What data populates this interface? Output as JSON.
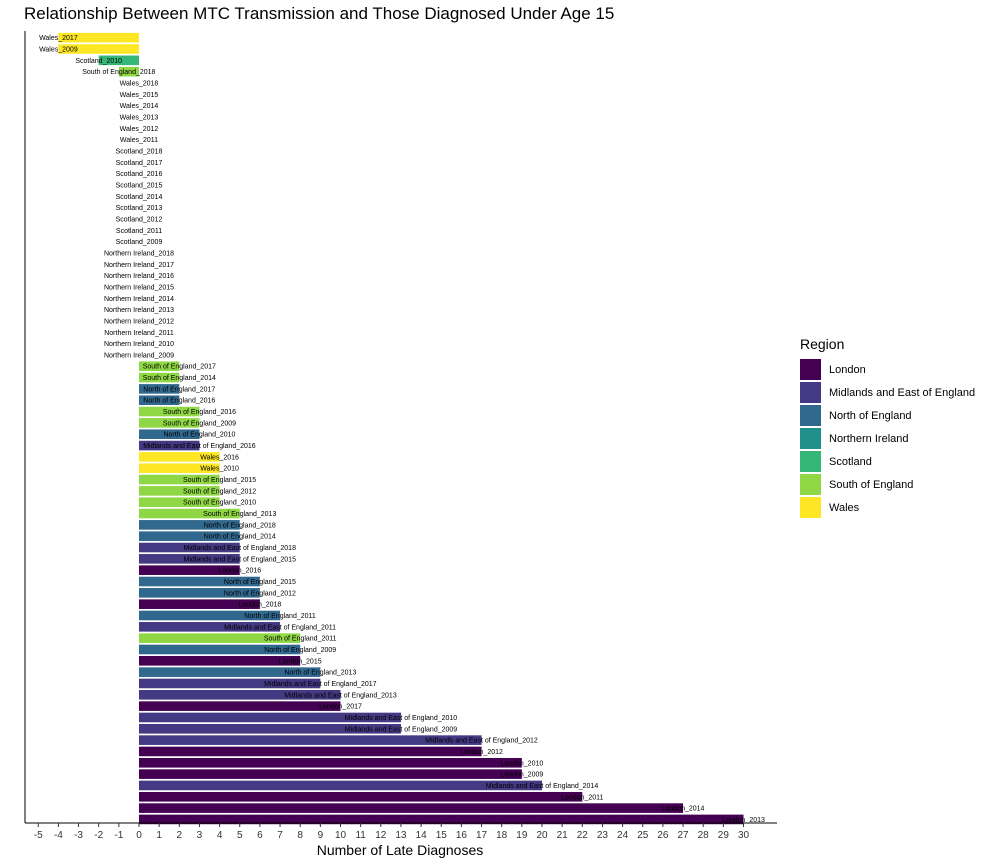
{
  "chart_data": {
    "type": "bar",
    "orientation": "horizontal",
    "title": "Relationship Between MTC Transmission and Those Diagnosed  Under Age 15",
    "xlabel": "Number of Late Diagnoses",
    "ylabel": "",
    "xlim": [
      -5.5,
      31.8
    ],
    "x_ticks": [
      "-5",
      "-4",
      "-3",
      "-2",
      "-1",
      "0",
      "1",
      "2",
      "3",
      "4",
      "5",
      "6",
      "7",
      "8",
      "9",
      "10",
      "11",
      "12",
      "13",
      "14",
      "15",
      "16",
      "17",
      "18",
      "19",
      "20",
      "21",
      "22",
      "23",
      "24",
      "25",
      "26",
      "27",
      "28",
      "29",
      "30"
    ],
    "legend_title": "Region",
    "legend_position": "right",
    "regions": [
      {
        "name": "London",
        "color": "#440154"
      },
      {
        "name": "Midlands and East of England",
        "color": "#443983"
      },
      {
        "name": "North of England",
        "color": "#31688E"
      },
      {
        "name": "Northern Ireland",
        "color": "#21908C"
      },
      {
        "name": "Scotland",
        "color": "#35B779"
      },
      {
        "name": "South of England",
        "color": "#8FD744"
      },
      {
        "name": "Wales",
        "color": "#FDE725"
      }
    ],
    "bars": [
      {
        "label": "Wales_2017",
        "region": "Wales",
        "value": -4
      },
      {
        "label": "Wales_2009",
        "region": "Wales",
        "value": -4
      },
      {
        "label": "Scotland_2010",
        "region": "Scotland",
        "value": -2
      },
      {
        "label": "South of England_2018",
        "region": "South of England",
        "value": -1
      },
      {
        "label": "Wales_2018",
        "region": "Wales",
        "value": 0
      },
      {
        "label": "Wales_2015",
        "region": "Wales",
        "value": 0
      },
      {
        "label": "Wales_2014",
        "region": "Wales",
        "value": 0
      },
      {
        "label": "Wales_2013",
        "region": "Wales",
        "value": 0
      },
      {
        "label": "Wales_2012",
        "region": "Wales",
        "value": 0
      },
      {
        "label": "Wales_2011",
        "region": "Wales",
        "value": 0
      },
      {
        "label": "Scotland_2018",
        "region": "Scotland",
        "value": 0
      },
      {
        "label": "Scotland_2017",
        "region": "Scotland",
        "value": 0
      },
      {
        "label": "Scotland_2016",
        "region": "Scotland",
        "value": 0
      },
      {
        "label": "Scotland_2015",
        "region": "Scotland",
        "value": 0
      },
      {
        "label": "Scotland_2014",
        "region": "Scotland",
        "value": 0
      },
      {
        "label": "Scotland_2013",
        "region": "Scotland",
        "value": 0
      },
      {
        "label": "Scotland_2012",
        "region": "Scotland",
        "value": 0
      },
      {
        "label": "Scotland_2011",
        "region": "Scotland",
        "value": 0
      },
      {
        "label": "Scotland_2009",
        "region": "Scotland",
        "value": 0
      },
      {
        "label": "Northern Ireland_2018",
        "region": "Northern Ireland",
        "value": 0
      },
      {
        "label": "Northern Ireland_2017",
        "region": "Northern Ireland",
        "value": 0
      },
      {
        "label": "Northern Ireland_2016",
        "region": "Northern Ireland",
        "value": 0
      },
      {
        "label": "Northern Ireland_2015",
        "region": "Northern Ireland",
        "value": 0
      },
      {
        "label": "Northern Ireland_2014",
        "region": "Northern Ireland",
        "value": 0
      },
      {
        "label": "Northern Ireland_2013",
        "region": "Northern Ireland",
        "value": 0
      },
      {
        "label": "Northern Ireland_2012",
        "region": "Northern Ireland",
        "value": 0
      },
      {
        "label": "Northern Ireland_2011",
        "region": "Northern Ireland",
        "value": 0
      },
      {
        "label": "Northern Ireland_2010",
        "region": "Northern Ireland",
        "value": 0
      },
      {
        "label": "Northern Ireland_2009",
        "region": "Northern Ireland",
        "value": 0
      },
      {
        "label": "South of England_2017",
        "region": "South of England",
        "value": 2
      },
      {
        "label": "South of England_2014",
        "region": "South of England",
        "value": 2
      },
      {
        "label": "North of England_2017",
        "region": "North of England",
        "value": 2
      },
      {
        "label": "North of England_2016",
        "region": "North of England",
        "value": 2
      },
      {
        "label": "South of England_2016",
        "region": "South of England",
        "value": 3
      },
      {
        "label": "South of England_2009",
        "region": "South of England",
        "value": 3
      },
      {
        "label": "North of England_2010",
        "region": "North of England",
        "value": 3
      },
      {
        "label": "Midlands and East of England_2016",
        "region": "Midlands and East of England",
        "value": 3
      },
      {
        "label": "Wales_2016",
        "region": "Wales",
        "value": 4
      },
      {
        "label": "Wales_2010",
        "region": "Wales",
        "value": 4
      },
      {
        "label": "South of England_2015",
        "region": "South of England",
        "value": 4
      },
      {
        "label": "South of England_2012",
        "region": "South of England",
        "value": 4
      },
      {
        "label": "South of England_2010",
        "region": "South of England",
        "value": 4
      },
      {
        "label": "South of England_2013",
        "region": "South of England",
        "value": 5
      },
      {
        "label": "North of England_2018",
        "region": "North of England",
        "value": 5
      },
      {
        "label": "North of England_2014",
        "region": "North of England",
        "value": 5
      },
      {
        "label": "Midlands and East of England_2018",
        "region": "Midlands and East of England",
        "value": 5
      },
      {
        "label": "Midlands and East of England_2015",
        "region": "Midlands and East of England",
        "value": 5
      },
      {
        "label": "London_2016",
        "region": "London",
        "value": 5
      },
      {
        "label": "North of England_2015",
        "region": "North of England",
        "value": 6
      },
      {
        "label": "North of England_2012",
        "region": "North of England",
        "value": 6
      },
      {
        "label": "London_2018",
        "region": "London",
        "value": 6
      },
      {
        "label": "North of England_2011",
        "region": "North of England",
        "value": 7
      },
      {
        "label": "Midlands and East of England_2011",
        "region": "Midlands and East of England",
        "value": 7
      },
      {
        "label": "South of England_2011",
        "region": "South of England",
        "value": 8
      },
      {
        "label": "North of England_2009",
        "region": "North of England",
        "value": 8
      },
      {
        "label": "London_2015",
        "region": "London",
        "value": 8
      },
      {
        "label": "North of England_2013",
        "region": "North of England",
        "value": 9
      },
      {
        "label": "Midlands and East of England_2017",
        "region": "Midlands and East of England",
        "value": 9
      },
      {
        "label": "Midlands and East of England_2013",
        "region": "Midlands and East of England",
        "value": 10
      },
      {
        "label": "London_2017",
        "region": "London",
        "value": 10
      },
      {
        "label": "Midlands and East of England_2010",
        "region": "Midlands and East of England",
        "value": 13
      },
      {
        "label": "Midlands and East of England_2009",
        "region": "Midlands and East of England",
        "value": 13
      },
      {
        "label": "Midlands and East of England_2012",
        "region": "Midlands and East of England",
        "value": 17
      },
      {
        "label": "London_2012",
        "region": "London",
        "value": 17
      },
      {
        "label": "London_2010",
        "region": "London",
        "value": 19
      },
      {
        "label": "London_2009",
        "region": "London",
        "value": 19
      },
      {
        "label": "Midlands and East of England_2014",
        "region": "Midlands and East of England",
        "value": 20
      },
      {
        "label": "London_2011",
        "region": "London",
        "value": 22
      },
      {
        "label": "London_2014",
        "region": "London",
        "value": 27
      },
      {
        "label": "London_2013",
        "region": "London",
        "value": 30
      }
    ]
  }
}
